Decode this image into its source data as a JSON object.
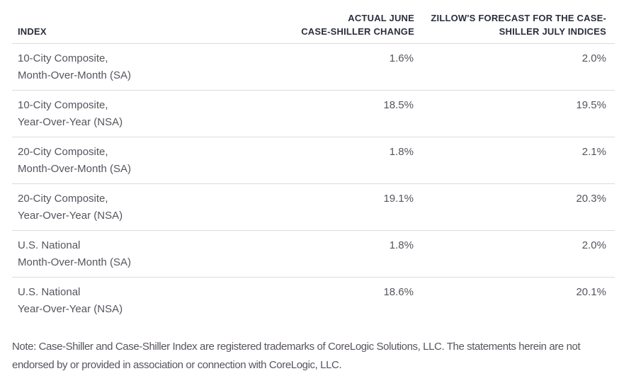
{
  "colors": {
    "background": "#ffffff",
    "header_text": "#2b2f3e",
    "body_text": "#59535d",
    "row_border": "#dcdcdc"
  },
  "table": {
    "columns": [
      {
        "lines": [
          "INDEX"
        ]
      },
      {
        "lines": [
          "ACTUAL JUNE",
          "CASE-SHILLER CHANGE"
        ]
      },
      {
        "lines": [
          "ZILLOW'S FORECAST FOR THE CASE-",
          "SHILLER JULY INDICES"
        ]
      }
    ],
    "rows": [
      {
        "index_lines": [
          "10-City Composite,",
          "Month-Over-Month (SA)"
        ],
        "actual": "1.6%",
        "forecast": "2.0%"
      },
      {
        "index_lines": [
          "10-City Composite,",
          "Year-Over-Year (NSA)"
        ],
        "actual": "18.5%",
        "forecast": "19.5%"
      },
      {
        "index_lines": [
          "20-City Composite,",
          "Month-Over-Month (SA)"
        ],
        "actual": "1.8%",
        "forecast": "2.1%"
      },
      {
        "index_lines": [
          "20-City Composite,",
          "Year-Over-Year (NSA)"
        ],
        "actual": "19.1%",
        "forecast": "20.3%"
      },
      {
        "index_lines": [
          "U.S. National",
          "Month-Over-Month (SA)"
        ],
        "actual": "1.8%",
        "forecast": "2.0%"
      },
      {
        "index_lines": [
          "U.S. National",
          "Year-Over-Year (NSA)"
        ],
        "actual": "18.6%",
        "forecast": "20.1%"
      }
    ]
  },
  "note": {
    "lines": [
      "Note: Case-Shiller and Case-Shiller Index are registered trademarks of CoreLogic Solutions, LLC. The statements herein are not",
      "endorsed by or provided in association or connection with CoreLogic, LLC."
    ]
  },
  "chart_data": {
    "type": "table",
    "columns": [
      "INDEX",
      "ACTUAL JUNE CASE-SHILLER CHANGE",
      "ZILLOW'S FORECAST FOR THE CASE-SHILLER JULY INDICES"
    ],
    "rows": [
      [
        "10-City Composite, Month-Over-Month (SA)",
        "1.6%",
        "2.0%"
      ],
      [
        "10-City Composite, Year-Over-Year (NSA)",
        "18.5%",
        "19.5%"
      ],
      [
        "20-City Composite, Month-Over-Month (SA)",
        "1.8%",
        "2.1%"
      ],
      [
        "20-City Composite, Year-Over-Year (NSA)",
        "19.1%",
        "20.3%"
      ],
      [
        "U.S. National Month-Over-Month (SA)",
        "1.8%",
        "2.0%"
      ],
      [
        "U.S. National Year-Over-Year (NSA)",
        "18.6%",
        "20.1%"
      ]
    ],
    "note": "Note: Case-Shiller and Case-Shiller Index are registered trademarks of CoreLogic Solutions, LLC. The statements herein are not endorsed by or provided in association or connection with CoreLogic, LLC."
  }
}
